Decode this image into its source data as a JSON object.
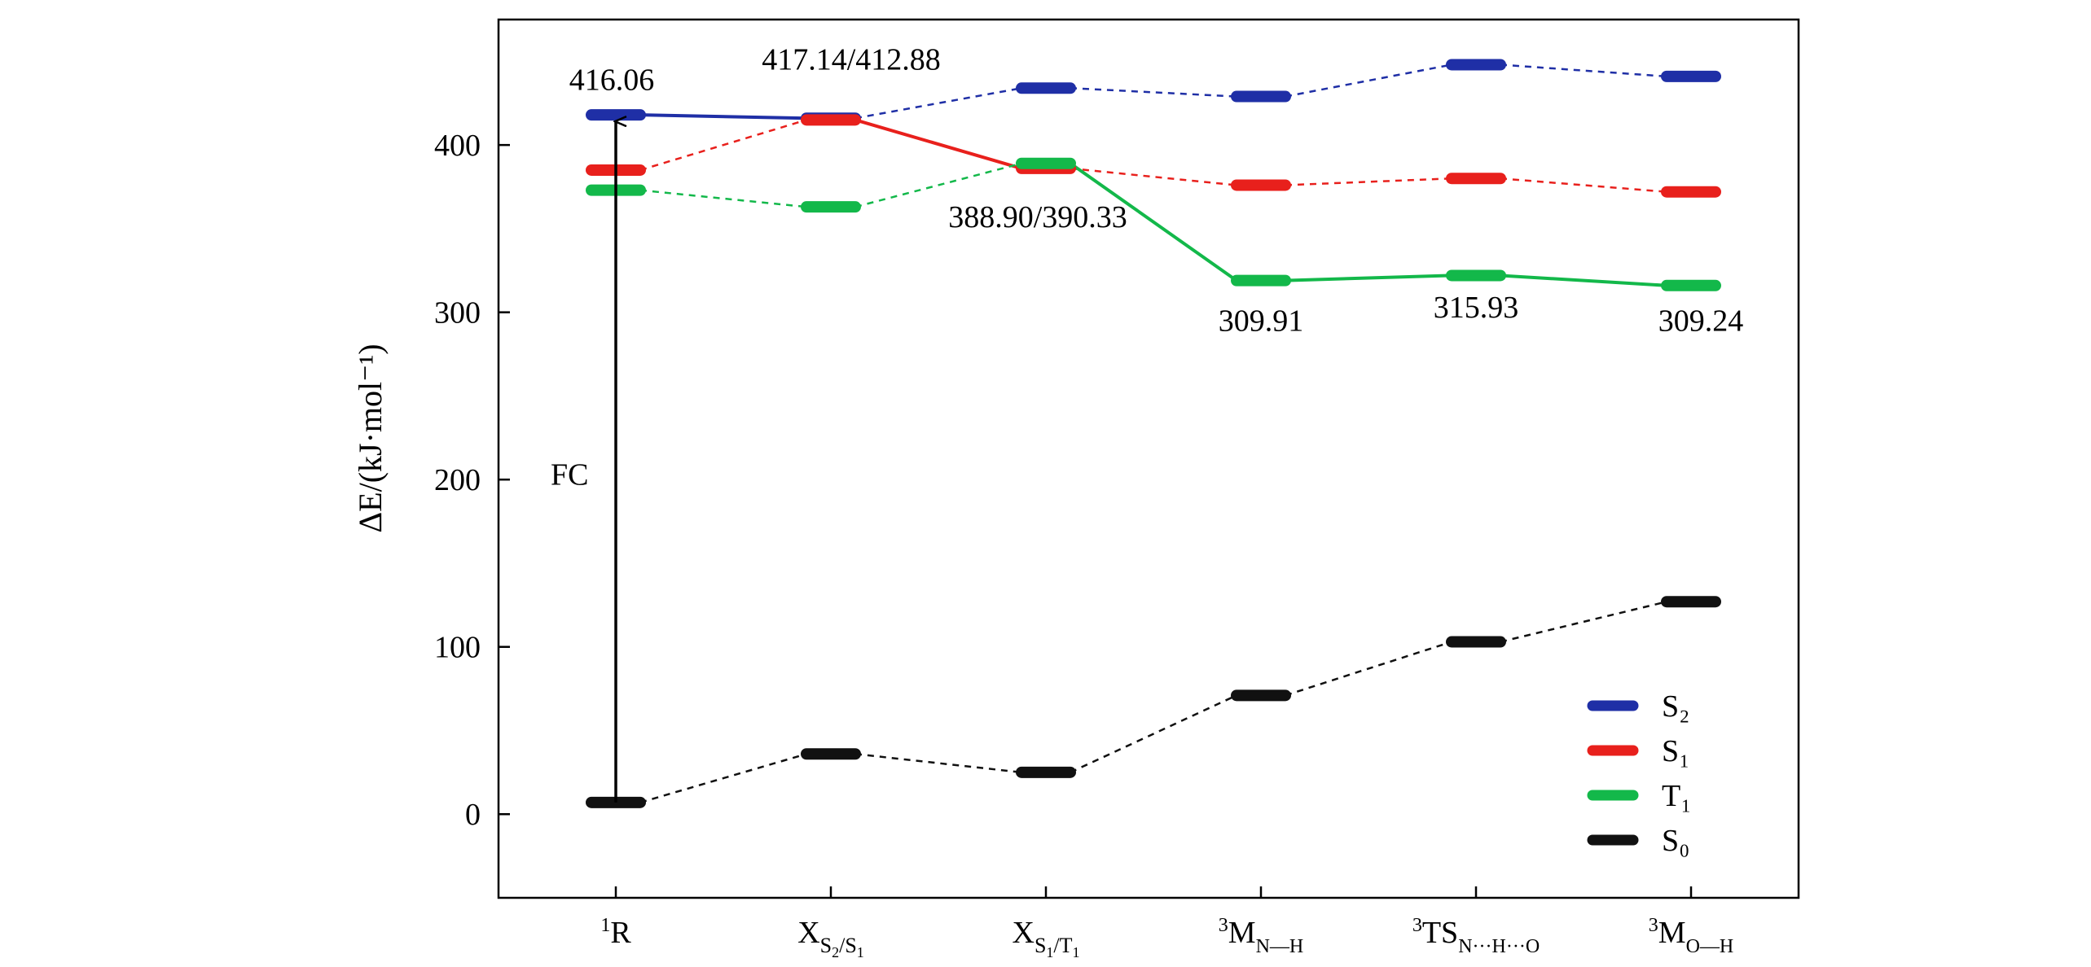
{
  "chart_data": {
    "type": "line",
    "title": "",
    "xlabel": "",
    "ylabel": "ΔE/(kJ·mol⁻¹)",
    "ylim": [
      -50,
      475
    ],
    "yticks": [
      0,
      100,
      200,
      300,
      400
    ],
    "categories": [
      {
        "main": "R",
        "pre": "1",
        "sub": "",
        "display": "¹R"
      },
      {
        "main": "X",
        "pre": "",
        "sub": "S2/S1",
        "display": "XS2/S1"
      },
      {
        "main": "X",
        "pre": "",
        "sub": "S1/T1",
        "display": "XS1/T1"
      },
      {
        "main": "M",
        "pre": "3",
        "sub": "N—H",
        "display": "³MN—H"
      },
      {
        "main": "TS",
        "pre": "3",
        "sub": "N···H···O",
        "display": "³TSN···H···O"
      },
      {
        "main": "M",
        "pre": "3",
        "sub": "O—H",
        "display": "³MO—H"
      }
    ],
    "series": [
      {
        "name": "S2",
        "label": "S₂",
        "color": "#1f2fa6",
        "values": [
          418,
          416,
          434,
          429,
          448,
          441
        ],
        "solid_segments": [
          [
            0,
            1
          ]
        ]
      },
      {
        "name": "S1",
        "label": "S₁",
        "color": "#e8201c",
        "values": [
          385,
          415,
          386,
          376,
          380,
          372
        ],
        "solid_segments": [
          [
            1,
            2
          ]
        ]
      },
      {
        "name": "T1",
        "label": "T₁",
        "color": "#13b84a",
        "values": [
          373,
          363,
          389,
          319,
          322,
          316
        ],
        "solid_segments": [
          [
            2,
            3
          ],
          [
            3,
            4
          ],
          [
            4,
            5
          ]
        ]
      },
      {
        "name": "S0",
        "label": "S₀",
        "color": "#111111",
        "values": [
          7,
          36,
          25,
          71,
          103,
          127
        ],
        "solid_segments": []
      }
    ],
    "annotations": [
      {
        "text": "416.06",
        "category": 0,
        "y": 433
      },
      {
        "text": "417.14/412.88",
        "category": 1,
        "y": 445
      },
      {
        "text": "388.90/390.33",
        "category": 2,
        "y": 351
      },
      {
        "text": "309.91",
        "category": 3,
        "y": 289
      },
      {
        "text": "315.93",
        "category": 4,
        "y": 297
      },
      {
        "text": "309.24",
        "category": 5,
        "y": 289
      },
      {
        "text": "FC",
        "category": 0,
        "y": 197
      }
    ],
    "arrow": {
      "label": "FC",
      "category": 0,
      "from": 7,
      "to": 418
    },
    "legend_position": "bottom-right"
  }
}
